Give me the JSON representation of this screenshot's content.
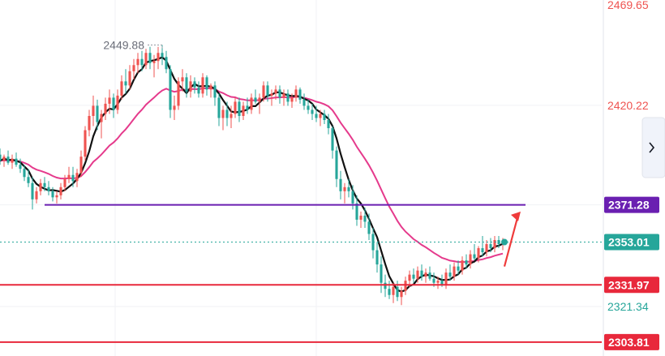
{
  "chart_data": {
    "type": "candlestick",
    "grid": true,
    "y_axis": {
      "position": "right",
      "range": [
        2297,
        2472
      ]
    },
    "y_tick_labels": [
      {
        "label": "2469.65",
        "value": 2469.65,
        "color": "#ef5350"
      },
      {
        "label": "2420.22",
        "value": 2420.22,
        "color": "#ef5350"
      },
      {
        "label": "2321.34",
        "value": 2321.34,
        "color": "#26a69a"
      }
    ],
    "peak_annotation": {
      "label": "2449.88",
      "value": 2449.88,
      "candle_index": 40
    },
    "horizontal_levels": [
      {
        "label": "2371.28",
        "value": 2371.28,
        "color": "#6a1fb1"
      },
      {
        "label": "2331.97",
        "value": 2331.97,
        "color": "#e8283b"
      },
      {
        "label": "2303.81",
        "value": 2303.81,
        "color": "#e8283b"
      }
    ],
    "current_price": {
      "label": "2353.01",
      "value": 2353.01,
      "color": "#26a69a"
    },
    "colors": {
      "up": "#ef5350",
      "down": "#26a69a",
      "ma_fast": "#111111",
      "ma_slow": "#e53a8c",
      "arrow": "#ef3b3b"
    },
    "candles": [
      [
        2396,
        2399,
        2391,
        2393
      ],
      [
        2393,
        2396,
        2390,
        2395
      ],
      [
        2395,
        2398,
        2391,
        2392
      ],
      [
        2392,
        2396,
        2389,
        2394
      ],
      [
        2394,
        2397,
        2390,
        2391
      ],
      [
        2391,
        2394,
        2387,
        2389
      ],
      [
        2389,
        2391,
        2383,
        2385
      ],
      [
        2385,
        2389,
        2380,
        2382
      ],
      [
        2382,
        2385,
        2369,
        2374
      ],
      [
        2374,
        2380,
        2372,
        2378
      ],
      [
        2378,
        2384,
        2376,
        2382
      ],
      [
        2382,
        2385,
        2378,
        2380
      ],
      [
        2380,
        2383,
        2376,
        2378
      ],
      [
        2378,
        2380,
        2373,
        2375
      ],
      [
        2375,
        2378,
        2372,
        2376
      ],
      [
        2376,
        2382,
        2374,
        2380
      ],
      [
        2380,
        2386,
        2378,
        2384
      ],
      [
        2384,
        2390,
        2382,
        2386
      ],
      [
        2386,
        2390,
        2380,
        2383
      ],
      [
        2383,
        2389,
        2380,
        2387
      ],
      [
        2387,
        2398,
        2385,
        2395
      ],
      [
        2395,
        2410,
        2393,
        2408
      ],
      [
        2408,
        2418,
        2405,
        2415
      ],
      [
        2415,
        2425,
        2410,
        2420
      ],
      [
        2420,
        2423,
        2408,
        2412
      ],
      [
        2412,
        2418,
        2404,
        2416
      ],
      [
        2416,
        2424,
        2413,
        2421
      ],
      [
        2421,
        2428,
        2416,
        2424
      ],
      [
        2424,
        2426,
        2414,
        2418
      ],
      [
        2418,
        2428,
        2416,
        2425
      ],
      [
        2425,
        2435,
        2423,
        2432
      ],
      [
        2432,
        2438,
        2426,
        2430
      ],
      [
        2430,
        2440,
        2428,
        2437
      ],
      [
        2437,
        2443,
        2433,
        2440
      ],
      [
        2440,
        2446,
        2436,
        2443
      ],
      [
        2443,
        2447,
        2437,
        2440
      ],
      [
        2440,
        2448,
        2438,
        2446
      ],
      [
        2446,
        2449,
        2438,
        2441
      ],
      [
        2441,
        2445,
        2434,
        2442
      ],
      [
        2442,
        2449,
        2438,
        2446
      ],
      [
        2446,
        2449.88,
        2440,
        2444
      ],
      [
        2444,
        2447,
        2436,
        2438
      ],
      [
        2438,
        2440,
        2414,
        2418
      ],
      [
        2418,
        2425,
        2413,
        2420
      ],
      [
        2420,
        2434,
        2418,
        2432
      ],
      [
        2432,
        2438,
        2427,
        2434
      ],
      [
        2434,
        2436,
        2424,
        2427
      ],
      [
        2427,
        2435,
        2424,
        2432
      ],
      [
        2432,
        2434,
        2426,
        2429
      ],
      [
        2429,
        2432,
        2424,
        2426
      ],
      [
        2426,
        2436,
        2424,
        2434
      ],
      [
        2434,
        2435,
        2425,
        2428
      ],
      [
        2428,
        2431,
        2424,
        2430
      ],
      [
        2430,
        2432,
        2420,
        2424
      ],
      [
        2424,
        2426,
        2410,
        2414
      ],
      [
        2414,
        2420,
        2408,
        2418
      ],
      [
        2418,
        2422,
        2410,
        2414
      ],
      [
        2414,
        2420,
        2409,
        2416
      ],
      [
        2416,
        2424,
        2414,
        2422
      ],
      [
        2422,
        2424,
        2412,
        2415
      ],
      [
        2415,
        2422,
        2413,
        2420
      ],
      [
        2420,
        2424,
        2416,
        2418
      ],
      [
        2418,
        2426,
        2416,
        2424
      ],
      [
        2424,
        2428,
        2421,
        2422
      ],
      [
        2422,
        2426,
        2416,
        2424
      ],
      [
        2424,
        2432,
        2422,
        2430
      ],
      [
        2430,
        2432,
        2422,
        2425
      ],
      [
        2425,
        2428,
        2420,
        2426
      ],
      [
        2426,
        2430,
        2423,
        2428
      ],
      [
        2428,
        2430,
        2421,
        2424
      ],
      [
        2424,
        2428,
        2420,
        2426
      ],
      [
        2426,
        2428,
        2420,
        2422
      ],
      [
        2422,
        2426,
        2419,
        2424
      ],
      [
        2424,
        2430,
        2422,
        2428
      ],
      [
        2428,
        2429,
        2421,
        2423
      ],
      [
        2423,
        2426,
        2418,
        2420
      ],
      [
        2420,
        2423,
        2416,
        2418
      ],
      [
        2418,
        2421,
        2413,
        2416
      ],
      [
        2416,
        2420,
        2412,
        2414
      ],
      [
        2414,
        2418,
        2410,
        2416
      ],
      [
        2416,
        2418,
        2411,
        2413
      ],
      [
        2413,
        2416,
        2406,
        2409
      ],
      [
        2409,
        2410,
        2394,
        2398
      ],
      [
        2398,
        2400,
        2380,
        2384
      ],
      [
        2384,
        2388,
        2374,
        2378
      ],
      [
        2378,
        2382,
        2372,
        2380
      ],
      [
        2380,
        2384,
        2375,
        2378
      ],
      [
        2378,
        2381,
        2369,
        2372
      ],
      [
        2372,
        2376,
        2361,
        2364
      ],
      [
        2364,
        2368,
        2360,
        2366
      ],
      [
        2366,
        2370,
        2360,
        2363
      ],
      [
        2363,
        2367,
        2354,
        2357
      ],
      [
        2357,
        2360,
        2345,
        2349
      ],
      [
        2349,
        2353,
        2338,
        2342
      ],
      [
        2342,
        2346,
        2328,
        2333
      ],
      [
        2333,
        2337,
        2326,
        2330
      ],
      [
        2330,
        2334,
        2325,
        2327
      ],
      [
        2327,
        2333,
        2323,
        2331
      ],
      [
        2331,
        2334,
        2324,
        2326
      ],
      [
        2326,
        2331,
        2322,
        2329
      ],
      [
        2329,
        2336,
        2327,
        2334
      ],
      [
        2334,
        2339,
        2331,
        2337
      ],
      [
        2337,
        2340,
        2333,
        2335
      ],
      [
        2335,
        2341,
        2333,
        2339
      ],
      [
        2339,
        2342,
        2334,
        2336
      ],
      [
        2336,
        2340,
        2333,
        2338
      ],
      [
        2338,
        2341,
        2334,
        2335
      ],
      [
        2335,
        2338,
        2331,
        2333
      ],
      [
        2333,
        2336,
        2330,
        2334
      ],
      [
        2334,
        2337,
        2331,
        2332
      ],
      [
        2332,
        2340,
        2330,
        2338
      ],
      [
        2338,
        2342,
        2334,
        2336
      ],
      [
        2336,
        2343,
        2334,
        2341
      ],
      [
        2341,
        2344,
        2337,
        2339
      ],
      [
        2339,
        2346,
        2337,
        2344
      ],
      [
        2344,
        2347,
        2340,
        2342
      ],
      [
        2342,
        2349,
        2340,
        2347
      ],
      [
        2347,
        2352,
        2344,
        2345
      ],
      [
        2345,
        2351,
        2343,
        2350
      ],
      [
        2350,
        2356,
        2346,
        2348
      ],
      [
        2348,
        2354,
        2346,
        2352
      ],
      [
        2352,
        2355,
        2348,
        2350
      ],
      [
        2350,
        2356,
        2348,
        2354
      ],
      [
        2354,
        2356,
        2350,
        2352
      ],
      [
        2352,
        2355,
        2349,
        2353.01
      ]
    ]
  }
}
